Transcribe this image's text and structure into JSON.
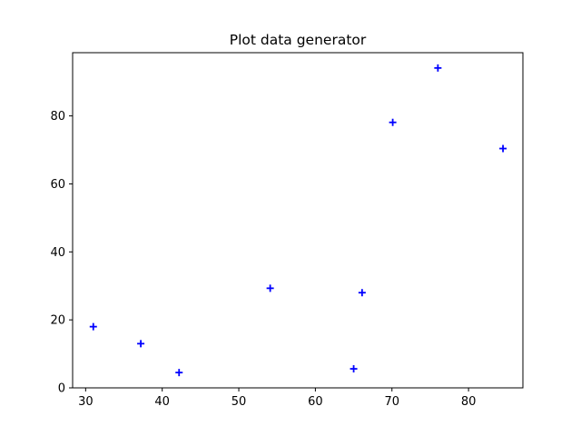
{
  "chart_data": {
    "type": "scatter",
    "title": "Plot data generator",
    "xlabel": "",
    "ylabel": "",
    "xlim": [
      28.3,
      87.1
    ],
    "ylim": [
      0,
      98.6
    ],
    "x_ticks": [
      30,
      40,
      50,
      60,
      70,
      80
    ],
    "y_ticks": [
      0,
      20,
      40,
      60,
      80
    ],
    "grid": false,
    "legend": "none",
    "marker": "+",
    "color": "#0000ff",
    "series": [
      {
        "points": [
          {
            "x": 31.0,
            "y": 18.0
          },
          {
            "x": 37.2,
            "y": 13.0
          },
          {
            "x": 42.2,
            "y": 4.5
          },
          {
            "x": 54.1,
            "y": 29.3
          },
          {
            "x": 65.0,
            "y": 5.6
          },
          {
            "x": 66.1,
            "y": 28.0
          },
          {
            "x": 70.1,
            "y": 78.1
          },
          {
            "x": 76.0,
            "y": 94.1
          },
          {
            "x": 84.5,
            "y": 70.4
          }
        ]
      }
    ]
  }
}
